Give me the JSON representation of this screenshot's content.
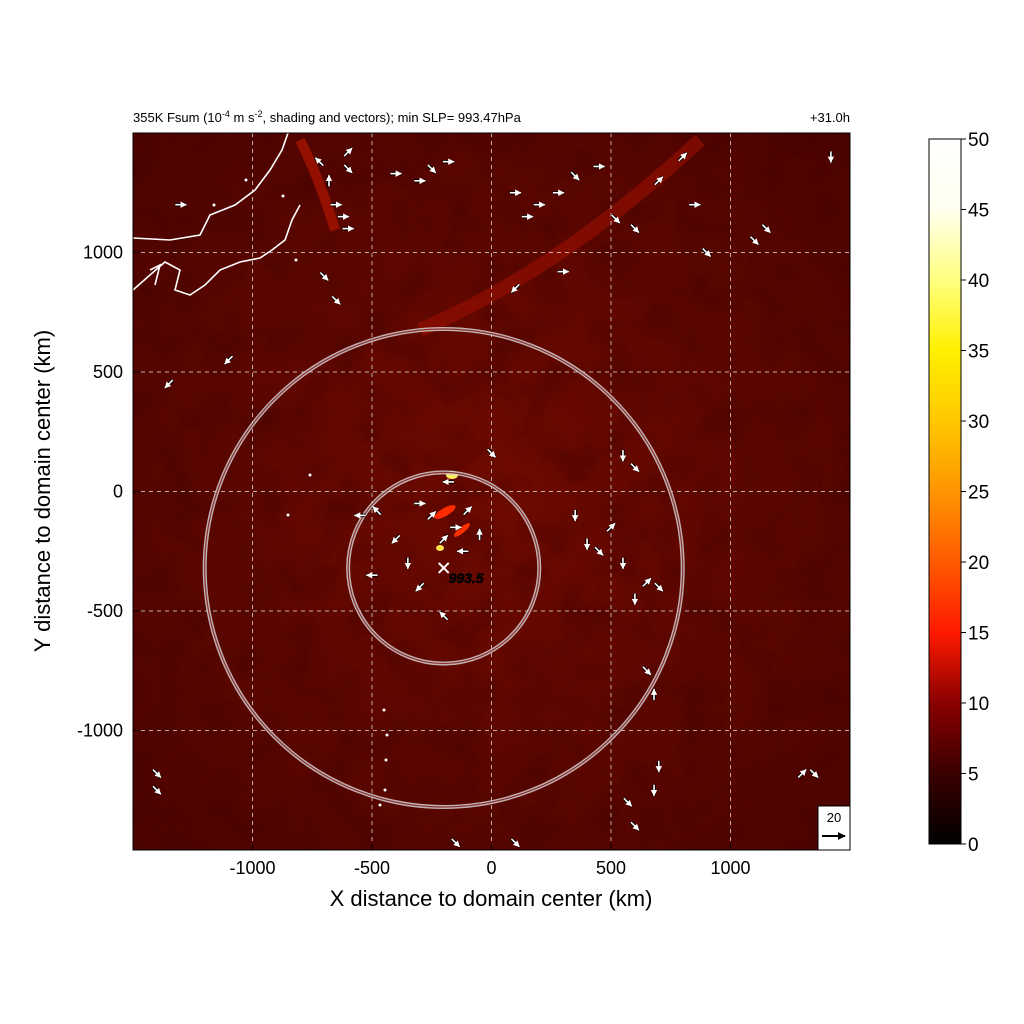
{
  "header": {
    "title_prefix": "355K Fsum (10",
    "title_exp1": "-4",
    "title_mid": " m s",
    "title_exp2": "-2",
    "title_suffix": ", shading and vectors); min SLP= 993.47hPa",
    "time_label": "+31.0h"
  },
  "colors": {
    "background_dark": "#4a0000",
    "field_mid": "#6a0a00",
    "ring": "#d0d0d0",
    "vector": "#ffffff",
    "coast": "#ffffff"
  },
  "chart_data": {
    "type": "heatmap",
    "title": "355K Fsum (10-4 m s-2, shading and vectors); min SLP= 993.47hPa",
    "xlabel": "X distance to domain center (km)",
    "ylabel": "Y distance to domain center (km)",
    "xlim": [
      -1500,
      1500
    ],
    "ylim": [
      -1500,
      1500
    ],
    "x_ticks": [
      -1000,
      -500,
      0,
      500,
      1000
    ],
    "y_ticks": [
      1000,
      500,
      0,
      -500,
      -1000
    ],
    "x_tick_labels": [
      "-1000",
      "-500",
      "0",
      "500",
      "1000"
    ],
    "y_tick_labels": [
      "1000",
      "500",
      "0",
      "-500",
      "-1000"
    ],
    "grid": true,
    "colorbar": {
      "min": 0,
      "max": 50,
      "ticks": [
        0,
        5,
        10,
        15,
        20,
        25,
        30,
        35,
        40,
        45,
        50
      ],
      "tick_labels": [
        "0",
        "5",
        "10",
        "15",
        "20",
        "25",
        "30",
        "35",
        "40",
        "45",
        "50"
      ]
    },
    "center": {
      "x": -200,
      "y": -320,
      "label": "993.5"
    },
    "rings_km": [
      400,
      1000
    ],
    "reference_vector": {
      "label": "20",
      "value": 20
    },
    "vectors": [
      {
        "x": -600,
        "y": 1350,
        "u": 1,
        "v": -1
      },
      {
        "x": -650,
        "y": 1200,
        "u": 1,
        "v": 0
      },
      {
        "x": -620,
        "y": 1150,
        "u": 1,
        "v": 0
      },
      {
        "x": -600,
        "y": 1100,
        "u": 1,
        "v": 0
      },
      {
        "x": -680,
        "y": 1300,
        "u": 0,
        "v": 1
      },
      {
        "x": -720,
        "y": 1380,
        "u": -1,
        "v": 1
      },
      {
        "x": -400,
        "y": 1330,
        "u": 1,
        "v": 0
      },
      {
        "x": -300,
        "y": 1300,
        "u": 1,
        "v": 0
      },
      {
        "x": -250,
        "y": 1350,
        "u": 1,
        "v": -1
      },
      {
        "x": -180,
        "y": 1380,
        "u": 1,
        "v": 0
      },
      {
        "x": 100,
        "y": 1250,
        "u": 1,
        "v": 0
      },
      {
        "x": 150,
        "y": 1150,
        "u": 1,
        "v": 0
      },
      {
        "x": 200,
        "y": 1200,
        "u": 1,
        "v": 0
      },
      {
        "x": 280,
        "y": 1250,
        "u": 1,
        "v": 0
      },
      {
        "x": 350,
        "y": 1320,
        "u": 1,
        "v": -1
      },
      {
        "x": 450,
        "y": 1360,
        "u": 1,
        "v": 0
      },
      {
        "x": 520,
        "y": 1140,
        "u": 1,
        "v": -1
      },
      {
        "x": 600,
        "y": 1100,
        "u": 1,
        "v": -1
      },
      {
        "x": 700,
        "y": 1300,
        "u": 1,
        "v": 1
      },
      {
        "x": 850,
        "y": 1200,
        "u": 1,
        "v": 0
      },
      {
        "x": 1100,
        "y": 1050,
        "u": 1,
        "v": -1
      },
      {
        "x": 1420,
        "y": 1400,
        "u": 0,
        "v": -1
      },
      {
        "x": -1300,
        "y": 1200,
        "u": 1,
        "v": 0
      },
      {
        "x": -1100,
        "y": 550,
        "u": -1,
        "v": -1
      },
      {
        "x": -1350,
        "y": 450,
        "u": -1,
        "v": -1
      },
      {
        "x": -700,
        "y": 900,
        "u": 1,
        "v": -1
      },
      {
        "x": -650,
        "y": 800,
        "u": 1,
        "v": -1
      },
      {
        "x": 100,
        "y": 850,
        "u": -1,
        "v": -1
      },
      {
        "x": 300,
        "y": 920,
        "u": 1,
        "v": 0
      },
      {
        "x": -300,
        "y": -50,
        "u": 1,
        "v": 0
      },
      {
        "x": -250,
        "y": -100,
        "u": 1,
        "v": 1
      },
      {
        "x": -150,
        "y": -150,
        "u": 1,
        "v": 0
      },
      {
        "x": -120,
        "y": -250,
        "u": -1,
        "v": 0
      },
      {
        "x": -200,
        "y": -200,
        "u": 1,
        "v": 1
      },
      {
        "x": -100,
        "y": -80,
        "u": 1,
        "v": 1
      },
      {
        "x": -50,
        "y": -180,
        "u": 0,
        "v": 1
      },
      {
        "x": -350,
        "y": -300,
        "u": 0,
        "v": -1
      },
      {
        "x": -400,
        "y": -200,
        "u": -1,
        "v": -1
      },
      {
        "x": -500,
        "y": -350,
        "u": -1,
        "v": 0
      },
      {
        "x": -300,
        "y": -400,
        "u": -1,
        "v": -1
      },
      {
        "x": -200,
        "y": -520,
        "u": -1,
        "v": 1
      },
      {
        "x": -480,
        "y": -80,
        "u": -1,
        "v": 1
      },
      {
        "x": -550,
        "y": -100,
        "u": -1,
        "v": 0
      },
      {
        "x": -180,
        "y": 40,
        "u": -1,
        "v": 0
      },
      {
        "x": 0,
        "y": 160,
        "u": 1,
        "v": -1
      },
      {
        "x": 350,
        "y": -100,
        "u": 0,
        "v": -1
      },
      {
        "x": 400,
        "y": -220,
        "u": 0,
        "v": -1
      },
      {
        "x": 450,
        "y": -250,
        "u": 1,
        "v": -1
      },
      {
        "x": 500,
        "y": -150,
        "u": 1,
        "v": 1
      },
      {
        "x": 550,
        "y": -300,
        "u": 0,
        "v": -1
      },
      {
        "x": 600,
        "y": -450,
        "u": 0,
        "v": -1
      },
      {
        "x": 650,
        "y": -380,
        "u": 1,
        "v": 1
      },
      {
        "x": 700,
        "y": -400,
        "u": 1,
        "v": -1
      },
      {
        "x": 550,
        "y": 150,
        "u": 0,
        "v": -1
      },
      {
        "x": 600,
        "y": 100,
        "u": 1,
        "v": -1
      },
      {
        "x": 650,
        "y": -750,
        "u": 1,
        "v": -1
      },
      {
        "x": 680,
        "y": -850,
        "u": 0,
        "v": 1
      },
      {
        "x": 700,
        "y": -1150,
        "u": 0,
        "v": -1
      },
      {
        "x": 680,
        "y": -1250,
        "u": 0,
        "v": -1
      },
      {
        "x": 570,
        "y": -1300,
        "u": 1,
        "v": -1
      },
      {
        "x": 600,
        "y": -1400,
        "u": 1,
        "v": -1
      },
      {
        "x": 1300,
        "y": -1180,
        "u": 1,
        "v": 1
      },
      {
        "x": 1350,
        "y": -1180,
        "u": 1,
        "v": -1
      },
      {
        "x": -1400,
        "y": -1180,
        "u": 1,
        "v": -1
      },
      {
        "x": -1400,
        "y": -1250,
        "u": 1,
        "v": -1
      },
      {
        "x": 100,
        "y": -1470,
        "u": 1,
        "v": -1
      },
      {
        "x": -150,
        "y": -1470,
        "u": 1,
        "v": -1
      },
      {
        "x": -600,
        "y": 1420,
        "u": 1,
        "v": 1
      },
      {
        "x": 800,
        "y": 1400,
        "u": 1,
        "v": 1
      },
      {
        "x": 900,
        "y": 1000,
        "u": 1,
        "v": -1
      },
      {
        "x": 1150,
        "y": 1100,
        "u": 1,
        "v": -1
      }
    ]
  },
  "labels": {
    "cyclone_center": "993.5",
    "ref_vector": "20",
    "x_axis": "X distance to domain center (km)",
    "y_axis": "Y distance to domain center (km)"
  }
}
